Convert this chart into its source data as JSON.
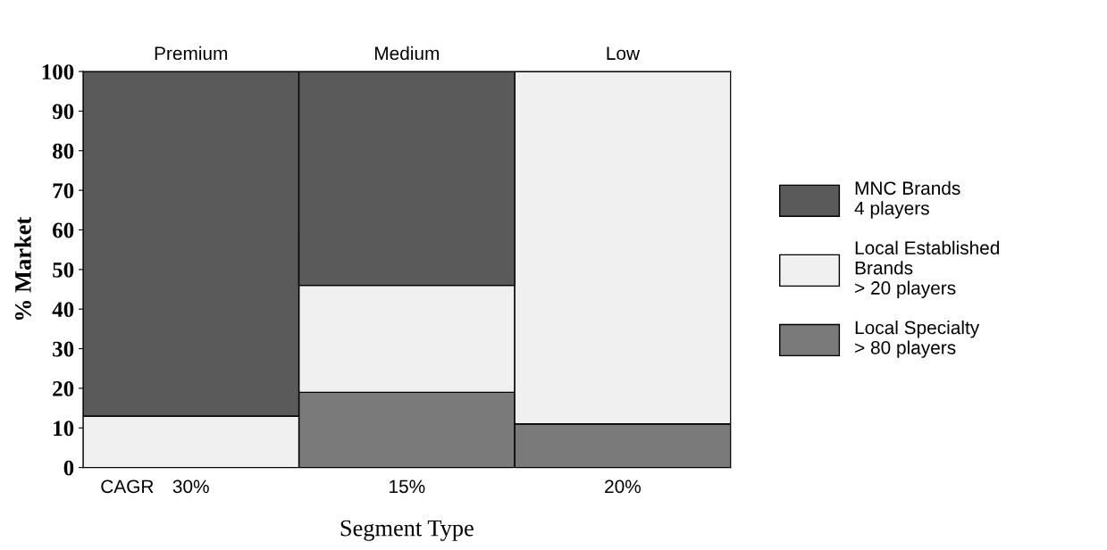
{
  "chart_data": {
    "type": "bar",
    "stacked": true,
    "xlabel": "Segment Type",
    "ylabel": "% Market",
    "categories": [
      "Premium",
      "Medium",
      "Low"
    ],
    "series": [
      {
        "name": "Local Specialty\n> 80 players",
        "color": "#7a7a7a",
        "values": [
          0,
          19,
          11
        ]
      },
      {
        "name": "Local Established\nBrands\n> 20 players",
        "color": "#f0f0f0",
        "values": [
          13,
          27,
          89
        ]
      },
      {
        "name": "MNC Brands\n4 players",
        "color": "#5a5a5a",
        "values": [
          87,
          54,
          0
        ]
      }
    ],
    "ylim": [
      0,
      100
    ],
    "yticks": [
      0,
      10,
      20,
      30,
      40,
      50,
      60,
      70,
      80,
      90,
      100
    ],
    "annotations": [
      "CAGR",
      "30%",
      "15%",
      "20%"
    ],
    "grid": false,
    "legend": "right"
  }
}
